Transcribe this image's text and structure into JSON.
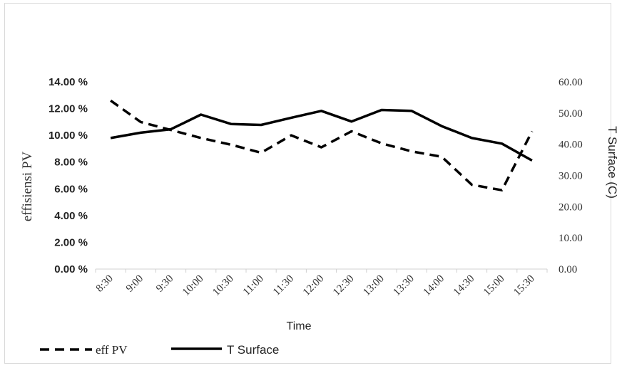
{
  "chart_data": {
    "type": "line",
    "categories": [
      "8:30",
      "9:00",
      "9:30",
      "10:00",
      "10:30",
      "11:00",
      "11:30",
      "12:00",
      "12:30",
      "13:00",
      "13:30",
      "14:00",
      "14:30",
      "15:00",
      "15:30"
    ],
    "series": [
      {
        "name": "eff PV",
        "axis": "left",
        "style": "dashed",
        "values": [
          12.6,
          11.0,
          10.4,
          9.8,
          9.3,
          8.7,
          10.0,
          9.1,
          10.3,
          9.4,
          8.8,
          8.4,
          6.3,
          5.9,
          10.3
        ]
      },
      {
        "name": "T Surface",
        "axis": "right",
        "style": "solid",
        "values": [
          42.0,
          43.7,
          44.8,
          49.5,
          46.5,
          46.2,
          48.5,
          50.7,
          47.3,
          51.0,
          50.7,
          45.8,
          42.0,
          40.2,
          34.8
        ]
      }
    ],
    "xlabel": "Time",
    "ylabel": "effisiensi PV",
    "y2label": "T Surface (C)",
    "ylim": [
      0,
      14
    ],
    "y2lim": [
      0,
      60
    ],
    "yticks": [
      "0.00 %",
      "2.00 %",
      "4.00 %",
      "6.00 %",
      "8.00 %",
      "10.00 %",
      "12.00 %",
      "14.00 %"
    ],
    "y2ticks": [
      "0.00",
      "10.00",
      "20.00",
      "30.00",
      "40.00",
      "50.00",
      "60.00"
    ],
    "grid": false,
    "legend_position": "bottom-left",
    "line_color": "#000000"
  }
}
